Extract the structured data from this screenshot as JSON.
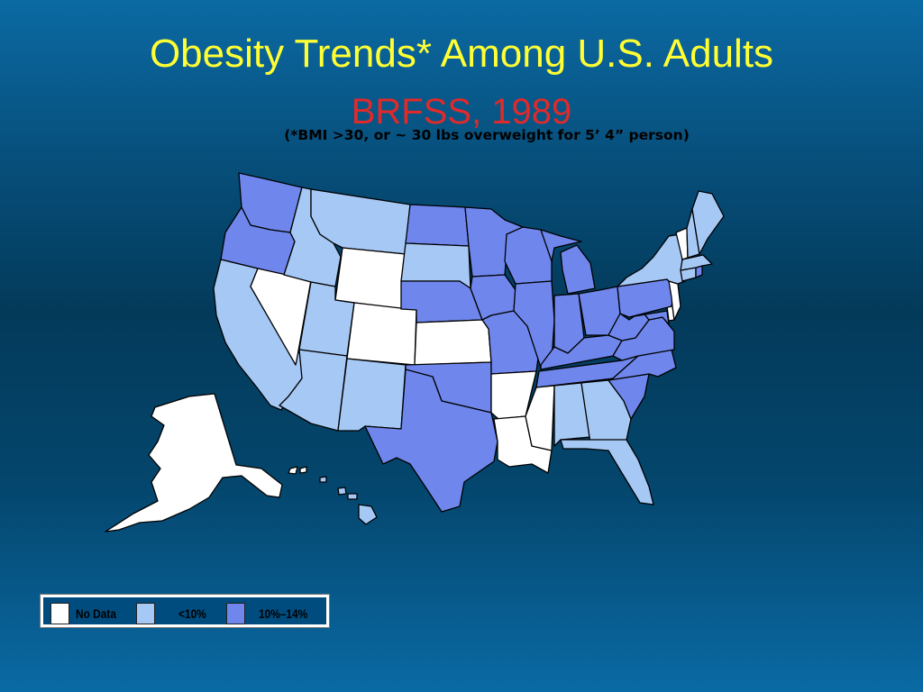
{
  "slide": {
    "title": "Obesity Trends* Among U.S. Adults",
    "subtitle": "BRFSS, 1989",
    "footnote": "(*BMI >30, or ~ 30 lbs overweight for 5’ 4” person)"
  },
  "colors": {
    "no_data": "#ffffff",
    "under_10": "#a6c8f5",
    "ten_to_14": "#6f87ec",
    "title": "#ffff33",
    "subtitle": "#e02a2a"
  },
  "legend": {
    "items": [
      {
        "key": "no_data",
        "label": "No Data"
      },
      {
        "key": "under_10",
        "label": "<10%"
      },
      {
        "key": "ten_to_14",
        "label": "10%–14%"
      }
    ]
  },
  "states": {
    "WA": "ten_to_14",
    "OR": "ten_to_14",
    "CA": "under_10",
    "NV": "no_data",
    "ID": "under_10",
    "MT": "under_10",
    "WY": "no_data",
    "UT": "under_10",
    "AZ": "under_10",
    "CO": "no_data",
    "NM": "under_10",
    "ND": "ten_to_14",
    "SD": "under_10",
    "NE": "ten_to_14",
    "KS": "no_data",
    "OK": "ten_to_14",
    "TX": "ten_to_14",
    "MN": "ten_to_14",
    "IA": "ten_to_14",
    "MO": "ten_to_14",
    "AR": "no_data",
    "LA": "no_data",
    "WI": "ten_to_14",
    "IL": "ten_to_14",
    "MI": "ten_to_14",
    "IN": "ten_to_14",
    "OH": "ten_to_14",
    "KY": "ten_to_14",
    "TN": "ten_to_14",
    "MS": "no_data",
    "AL": "under_10",
    "GA": "under_10",
    "FL": "under_10",
    "SC": "ten_to_14",
    "NC": "ten_to_14",
    "VA": "ten_to_14",
    "WV": "ten_to_14",
    "MD": "ten_to_14",
    "DE": "no_data",
    "NJ": "no_data",
    "PA": "ten_to_14",
    "NY": "under_10",
    "CT": "under_10",
    "RI": "ten_to_14",
    "MA": "under_10",
    "VT": "no_data",
    "NH": "under_10",
    "ME": "under_10",
    "AK": "no_data",
    "HI": "under_10"
  }
}
